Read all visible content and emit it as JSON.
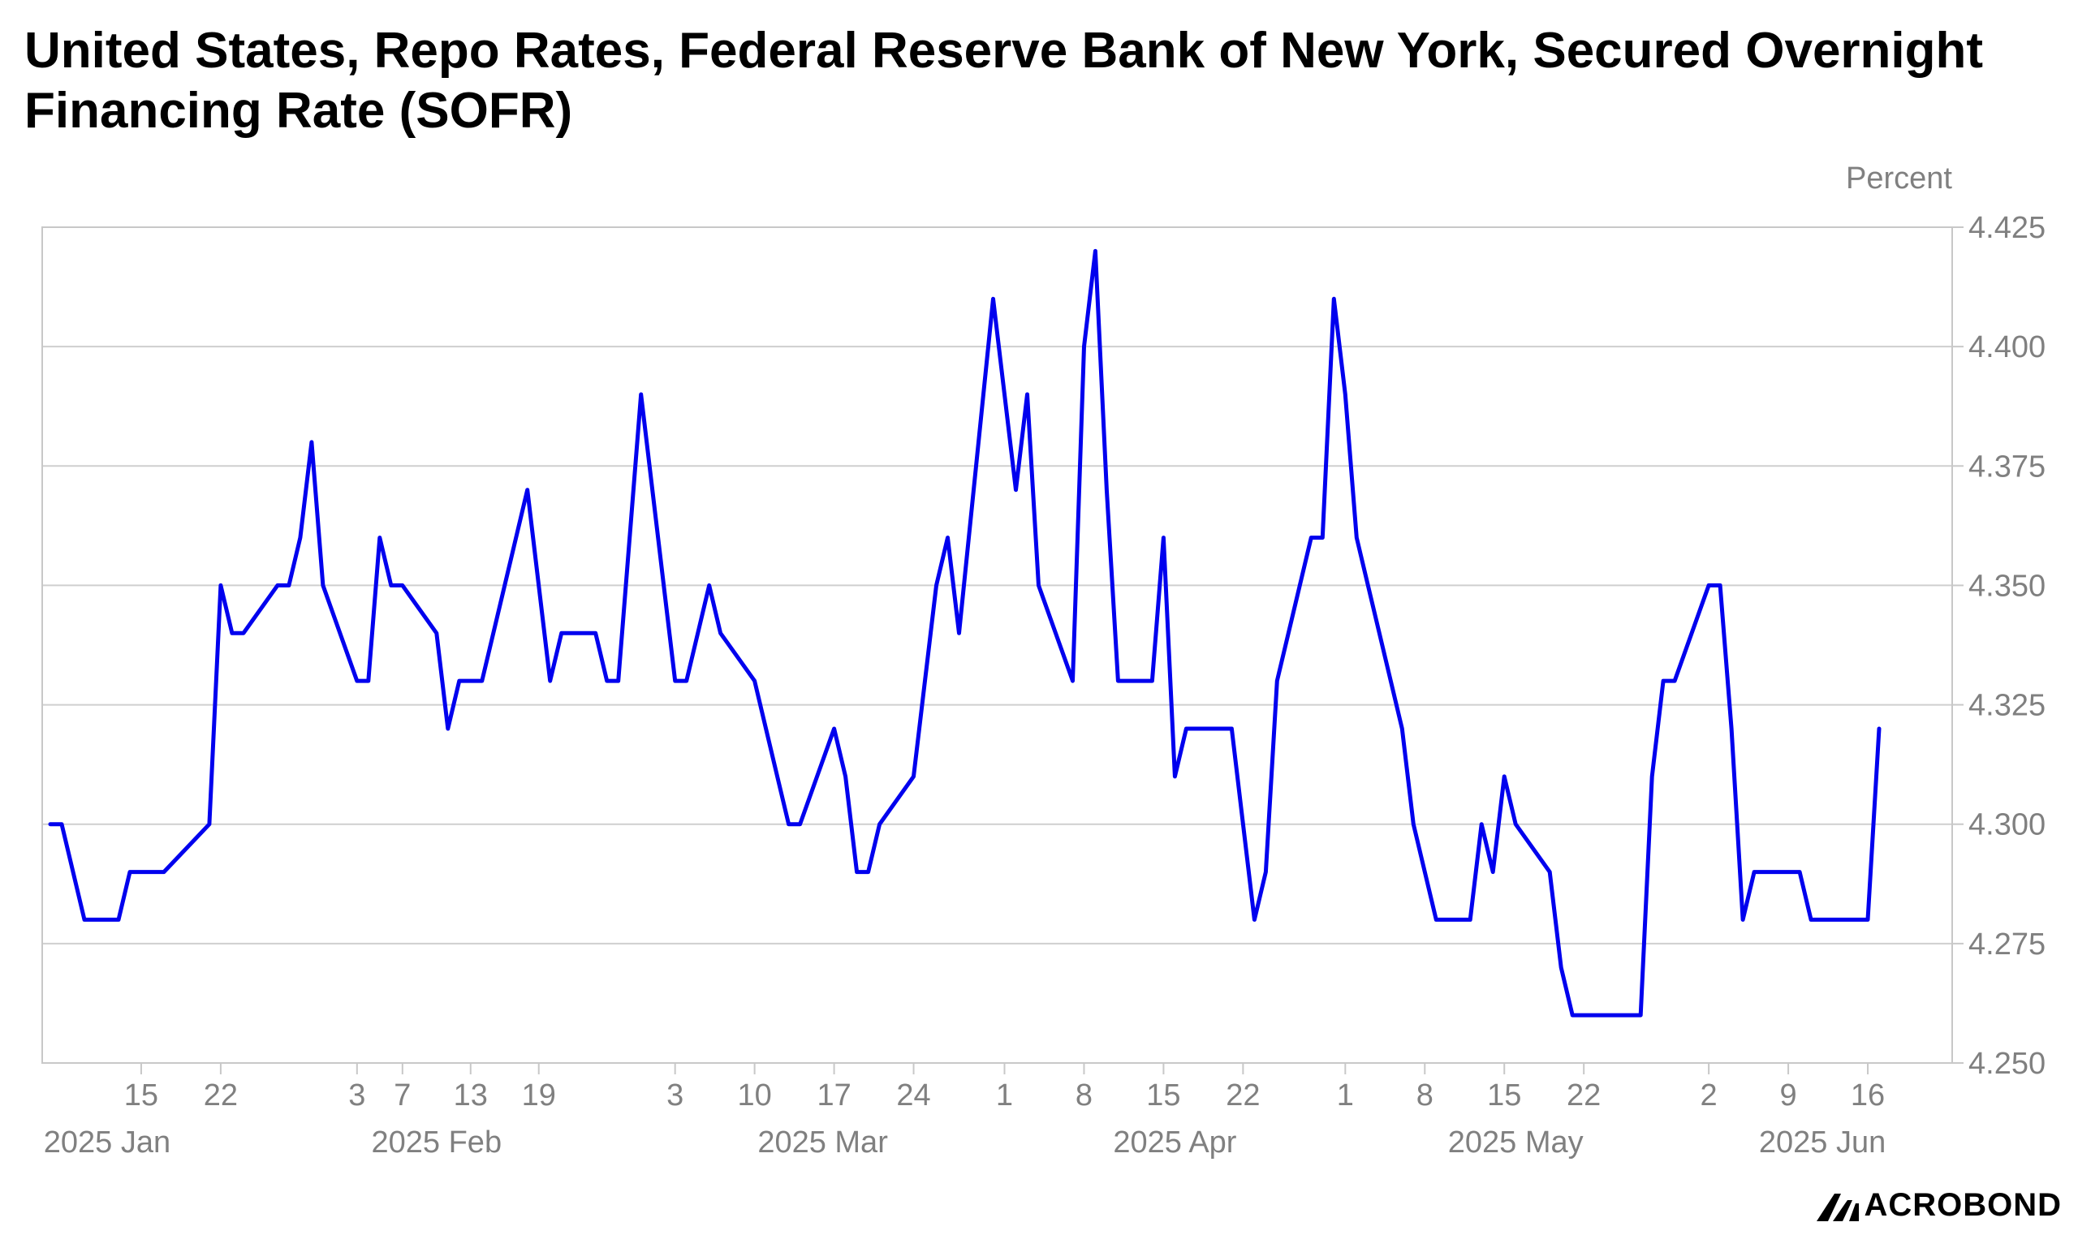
{
  "title": "United States, Repo Rates, Federal Reserve Bank of New York, Secured Overnight Financing Rate (SOFR)",
  "brand": "ACROBOND",
  "colors": {
    "series": "#0000ee",
    "grid": "#cfcfcf",
    "axis_text": "#808080",
    "frame": "#c8c8c8"
  },
  "chart_data": {
    "type": "line",
    "y_unit_label": "Percent",
    "ylim": [
      4.25,
      4.425
    ],
    "y_ticks": [
      "4.250",
      "4.275",
      "4.300",
      "4.325",
      "4.350",
      "4.375",
      "4.400",
      "4.425"
    ],
    "y_axis_position": "right",
    "grid": "horizontal",
    "xlim": [
      "2025-01-07",
      "2025-06-22"
    ],
    "x_day_ticks": [
      {
        "date": "2025-01-15",
        "label": "15"
      },
      {
        "date": "2025-01-22",
        "label": "22"
      },
      {
        "date": "2025-02-03",
        "label": "3"
      },
      {
        "date": "2025-02-07",
        "label": "7"
      },
      {
        "date": "2025-02-13",
        "label": "13"
      },
      {
        "date": "2025-02-19",
        "label": "19"
      },
      {
        "date": "2025-03-03",
        "label": "3"
      },
      {
        "date": "2025-03-10",
        "label": "10"
      },
      {
        "date": "2025-03-17",
        "label": "17"
      },
      {
        "date": "2025-03-24",
        "label": "24"
      },
      {
        "date": "2025-04-01",
        "label": "1"
      },
      {
        "date": "2025-04-08",
        "label": "8"
      },
      {
        "date": "2025-04-15",
        "label": "15"
      },
      {
        "date": "2025-04-22",
        "label": "22"
      },
      {
        "date": "2025-05-01",
        "label": "1"
      },
      {
        "date": "2025-05-08",
        "label": "8"
      },
      {
        "date": "2025-05-15",
        "label": "15"
      },
      {
        "date": "2025-05-22",
        "label": "22"
      },
      {
        "date": "2025-06-02",
        "label": "2"
      },
      {
        "date": "2025-06-09",
        "label": "9"
      },
      {
        "date": "2025-06-16",
        "label": "16"
      }
    ],
    "x_month_labels": [
      {
        "date": "2025-01-12",
        "label": "2025 Jan"
      },
      {
        "date": "2025-02-10",
        "label": "2025 Feb"
      },
      {
        "date": "2025-03-16",
        "label": "2025 Mar"
      },
      {
        "date": "2025-04-16",
        "label": "2025 Apr"
      },
      {
        "date": "2025-05-16",
        "label": "2025 May"
      },
      {
        "date": "2025-06-12",
        "label": "2025 Jun"
      }
    ],
    "series": [
      {
        "x": [
          "2025-01-07",
          "2025-01-08",
          "2025-01-10",
          "2025-01-13",
          "2025-01-14",
          "2025-01-15",
          "2025-01-16",
          "2025-01-17",
          "2025-01-21",
          "2025-01-22",
          "2025-01-23",
          "2025-01-24",
          "2025-01-27",
          "2025-01-28",
          "2025-01-29",
          "2025-01-30",
          "2025-01-31",
          "2025-02-03",
          "2025-02-04",
          "2025-02-05",
          "2025-02-06",
          "2025-02-07",
          "2025-02-10",
          "2025-02-11",
          "2025-02-12",
          "2025-02-13",
          "2025-02-14",
          "2025-02-18",
          "2025-02-19",
          "2025-02-20",
          "2025-02-21",
          "2025-02-24",
          "2025-02-25",
          "2025-02-26",
          "2025-02-27",
          "2025-02-28",
          "2025-03-03",
          "2025-03-04",
          "2025-03-05",
          "2025-03-06",
          "2025-03-07",
          "2025-03-10",
          "2025-03-11",
          "2025-03-12",
          "2025-03-13",
          "2025-03-14",
          "2025-03-17",
          "2025-03-18",
          "2025-03-19",
          "2025-03-20",
          "2025-03-21",
          "2025-03-24",
          "2025-03-25",
          "2025-03-26",
          "2025-03-27",
          "2025-03-28",
          "2025-03-31",
          "2025-04-01",
          "2025-04-02",
          "2025-04-03",
          "2025-04-04",
          "2025-04-07",
          "2025-04-08",
          "2025-04-09",
          "2025-04-10",
          "2025-04-11",
          "2025-04-14",
          "2025-04-15",
          "2025-04-16",
          "2025-04-17",
          "2025-04-18",
          "2025-04-21",
          "2025-04-22",
          "2025-04-23",
          "2025-04-24",
          "2025-04-25",
          "2025-04-28",
          "2025-04-29",
          "2025-04-30",
          "2025-05-01",
          "2025-05-02",
          "2025-05-05",
          "2025-05-06",
          "2025-05-07",
          "2025-05-08",
          "2025-05-09",
          "2025-05-12",
          "2025-05-13",
          "2025-05-14",
          "2025-05-15",
          "2025-05-16",
          "2025-05-19",
          "2025-05-20",
          "2025-05-21",
          "2025-05-22",
          "2025-05-23",
          "2025-05-27",
          "2025-05-28",
          "2025-05-29",
          "2025-05-30",
          "2025-06-02",
          "2025-06-03",
          "2025-06-04",
          "2025-06-05",
          "2025-06-06",
          "2025-06-09",
          "2025-06-10",
          "2025-06-11",
          "2025-06-12",
          "2025-06-13",
          "2025-06-16",
          "2025-06-17"
        ],
        "y": [
          4.3,
          4.3,
          4.28,
          4.28,
          4.29,
          4.29,
          4.29,
          4.29,
          4.3,
          4.35,
          4.34,
          4.34,
          4.35,
          4.35,
          4.36,
          4.38,
          4.35,
          4.33,
          4.33,
          4.36,
          4.35,
          4.35,
          4.34,
          4.32,
          4.33,
          4.33,
          4.33,
          4.37,
          4.35,
          4.33,
          4.34,
          4.34,
          4.33,
          4.33,
          4.36,
          4.39,
          4.33,
          4.33,
          4.34,
          4.35,
          4.34,
          4.33,
          4.32,
          4.31,
          4.3,
          4.3,
          4.32,
          4.31,
          4.29,
          4.29,
          4.3,
          4.31,
          4.33,
          4.35,
          4.36,
          4.34,
          4.41,
          4.39,
          4.37,
          4.39,
          4.35,
          4.33,
          4.4,
          4.42,
          4.37,
          4.33,
          4.33,
          4.36,
          4.31,
          4.32,
          4.32,
          4.32,
          4.3,
          4.28,
          4.29,
          4.33,
          4.36,
          4.36,
          4.41,
          4.39,
          4.36,
          4.33,
          4.32,
          4.3,
          4.29,
          4.28,
          4.28,
          4.3,
          4.29,
          4.31,
          4.3,
          4.29,
          4.27,
          4.26,
          4.26,
          4.26,
          4.26,
          4.31,
          4.33,
          4.33,
          4.35,
          4.35,
          4.32,
          4.28,
          4.29,
          4.29,
          4.29,
          4.28,
          4.28,
          4.28,
          4.28,
          4.32
        ]
      }
    ]
  }
}
